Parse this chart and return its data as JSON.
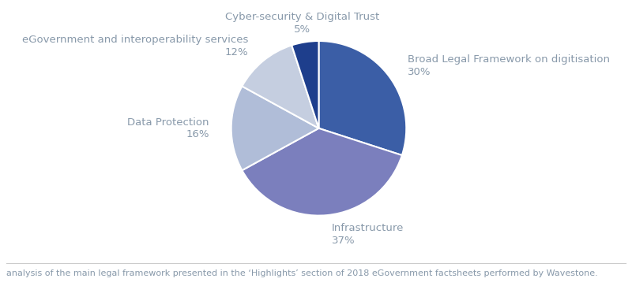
{
  "slices": [
    {
      "label": "Broad Legal Framework on digitisation",
      "pct": 30,
      "color": "#3B5EA6"
    },
    {
      "label": "Infrastructure",
      "pct": 37,
      "color": "#7B7FBD"
    },
    {
      "label": "Data Protection",
      "pct": 16,
      "color": "#B0BDD8"
    },
    {
      "label": "eGovernment and interoperability services",
      "pct": 12,
      "color": "#C5CEE0"
    },
    {
      "label": "Cyber-security & Digital Trust",
      "pct": 5,
      "color": "#1E3E8C"
    }
  ],
  "label_color": "#8899AA",
  "background_color": "#FFFFFF",
  "footnote": "analysis of the main legal framework presented in the ‘Highlights’ section of 2018 eGovernment factsheets performed by Wavestone.",
  "footnote_fontsize": 8,
  "label_fontsize": 9.5,
  "pct_fontsize": 9.5,
  "startangle": 90,
  "wedge_linewidth": 1.5,
  "wedge_linecolor": "#FFFFFF"
}
